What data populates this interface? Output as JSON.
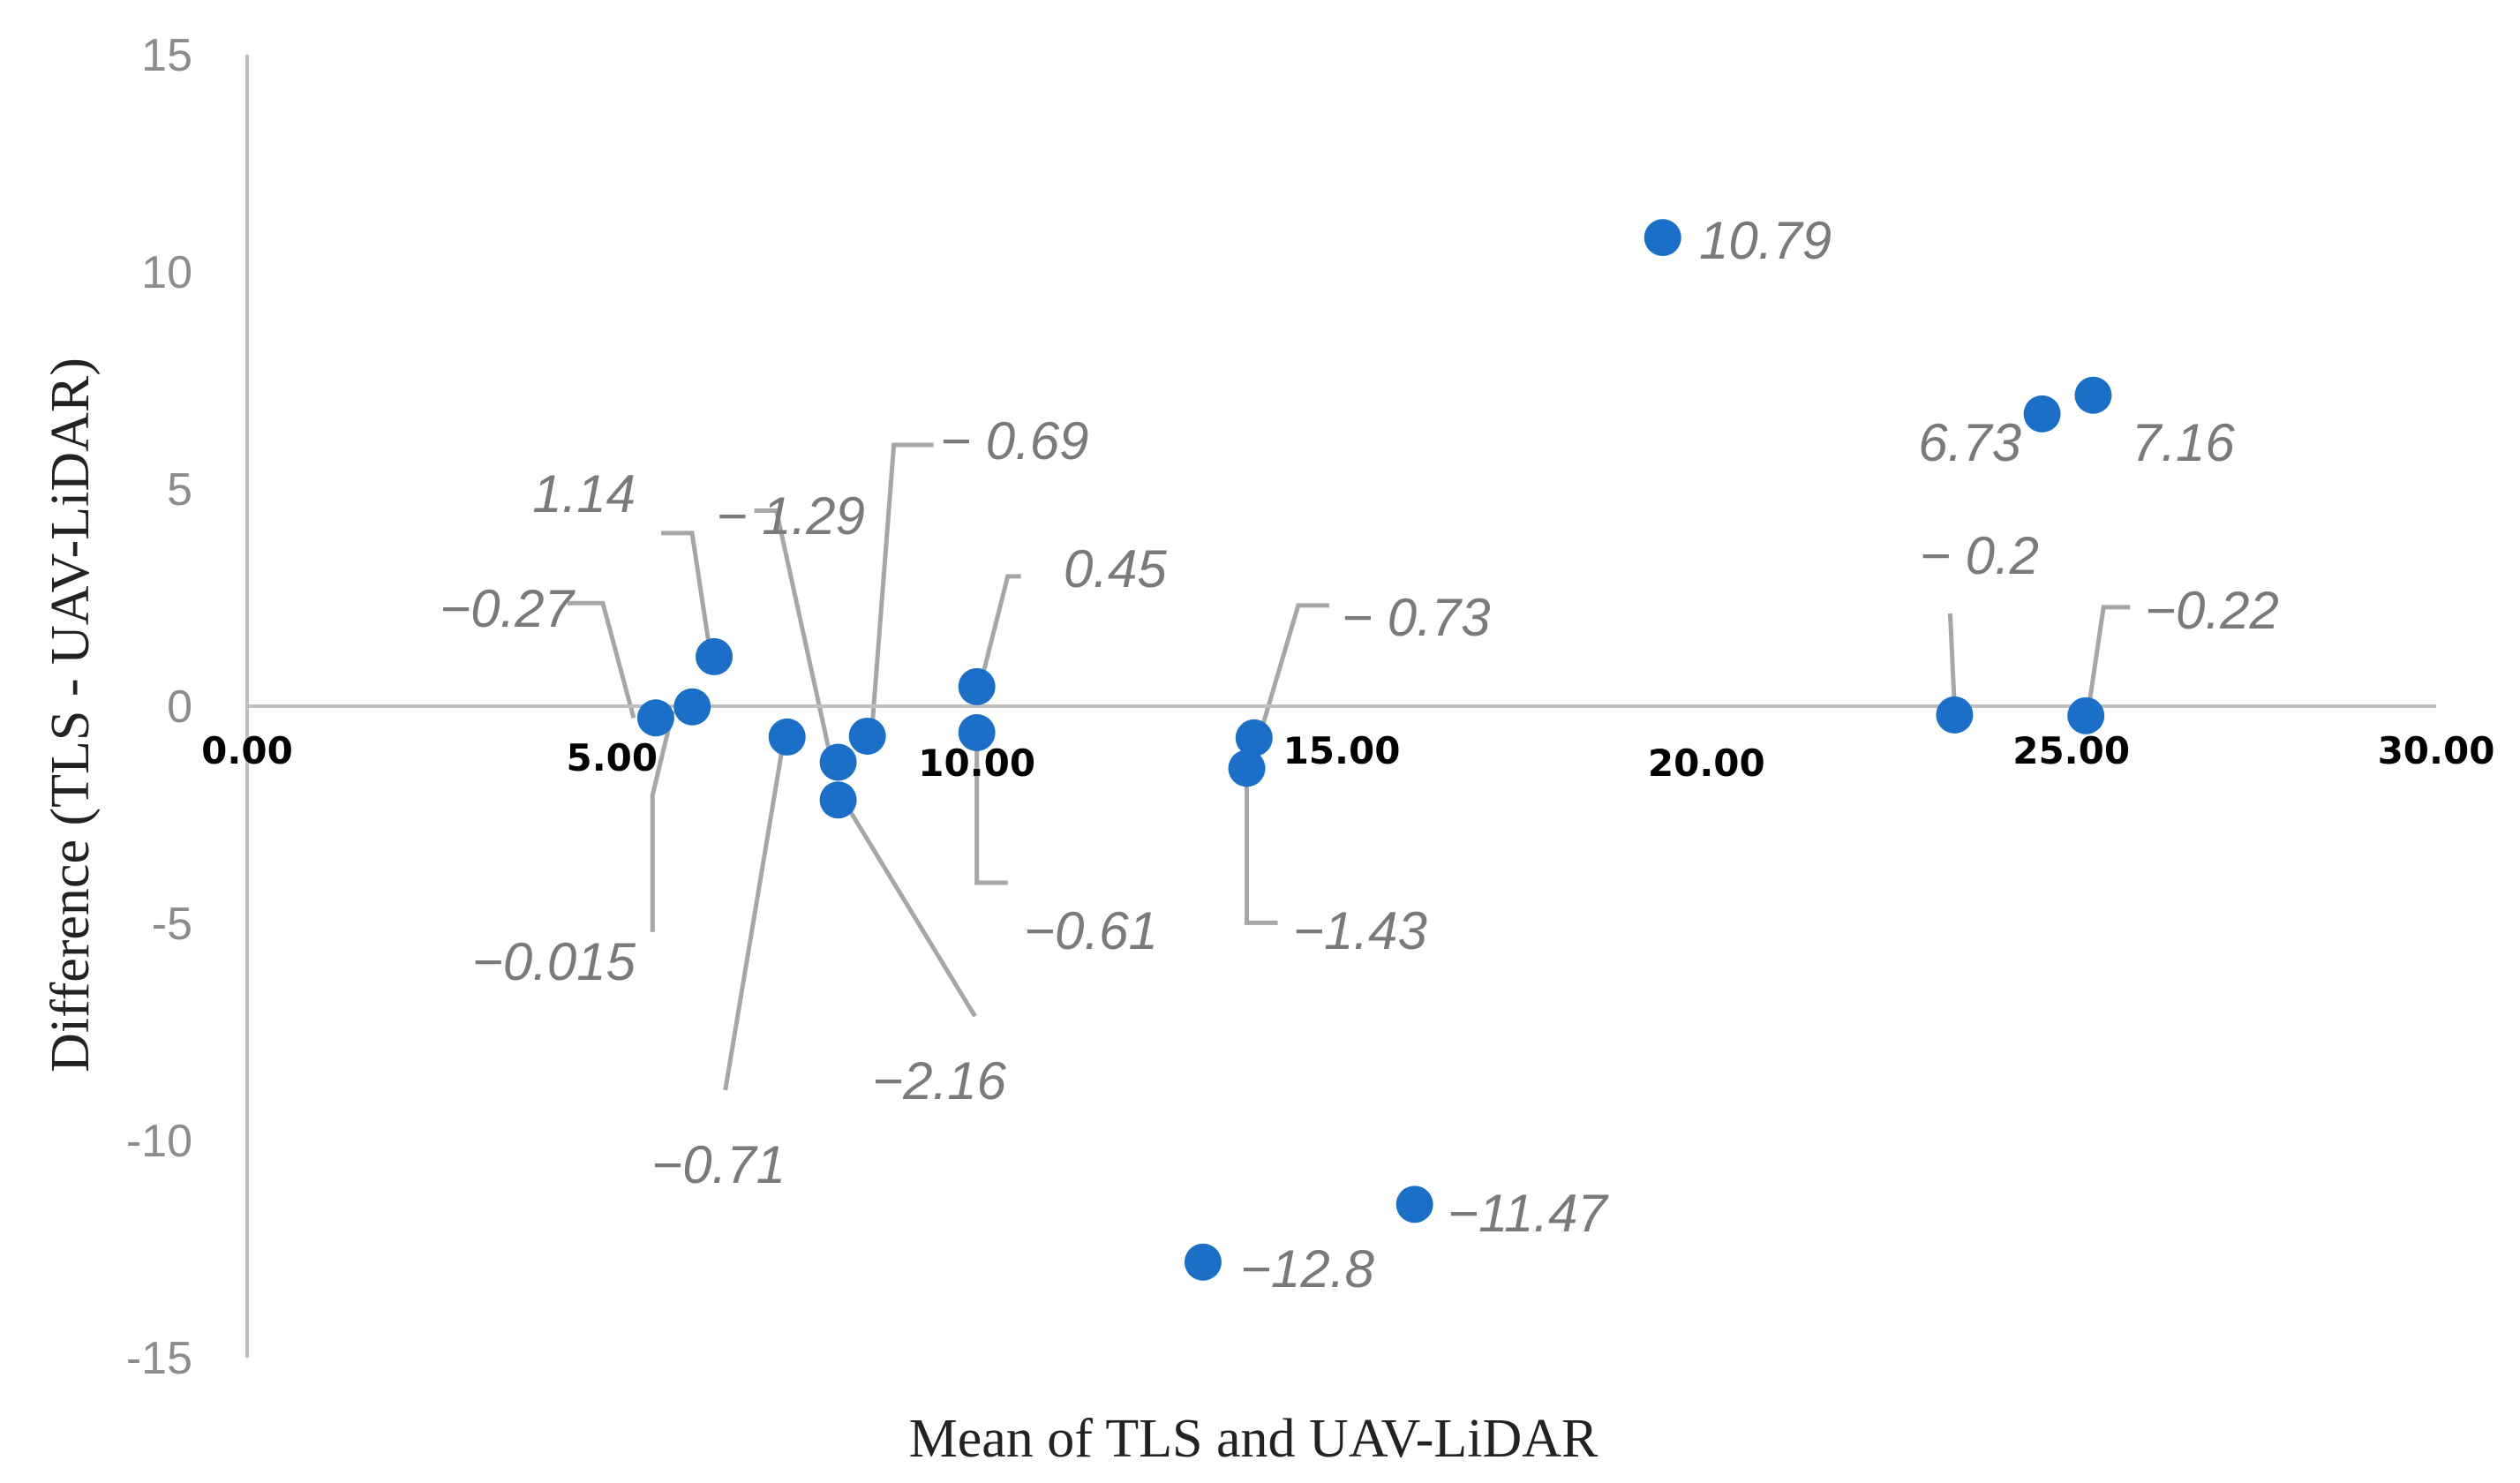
{
  "chart_data": {
    "type": "scatter",
    "title": "",
    "xlabel": "Mean of TLS and UAV-LiDAR",
    "ylabel": "Difference (TLS - UAV-LiDAR)",
    "xlim": [
      0,
      30
    ],
    "ylim": [
      -15,
      15
    ],
    "x_ticks": [
      "0.00",
      "5.00",
      "10.00",
      "15.00",
      "20.00",
      "25.00",
      "30.00"
    ],
    "y_ticks": [
      "15",
      "10",
      "5",
      "0",
      "-5",
      "-10",
      "-15"
    ],
    "grid": false,
    "marker_color": "#1b6fc6",
    "points": [
      {
        "x": 5.6,
        "y": -0.27,
        "label": "−0.27"
      },
      {
        "x": 6.1,
        "y": -0.015,
        "label": "−0.015"
      },
      {
        "x": 6.4,
        "y": 1.14,
        "label": "1.14"
      },
      {
        "x": 7.4,
        "y": -0.71,
        "label": "−0.71"
      },
      {
        "x": 8.1,
        "y": -1.29,
        "label": "− 1.29"
      },
      {
        "x": 8.1,
        "y": -2.16,
        "label": "−2.16"
      },
      {
        "x": 8.5,
        "y": -0.69,
        "label": "− 0.69"
      },
      {
        "x": 10.0,
        "y": 0.45,
        "label": "0.45"
      },
      {
        "x": 10.0,
        "y": -0.61,
        "label": "−0.61"
      },
      {
        "x": 13.8,
        "y": -0.73,
        "label": "− 0.73"
      },
      {
        "x": 13.7,
        "y": -1.43,
        "label": "−1.43"
      },
      {
        "x": 13.1,
        "y": -12.8,
        "label": "−12.8"
      },
      {
        "x": 16.0,
        "y": -11.47,
        "label": "−11.47"
      },
      {
        "x": 19.4,
        "y": 10.79,
        "label": "10.79"
      },
      {
        "x": 23.4,
        "y": -0.2,
        "label": "− 0.2"
      },
      {
        "x": 24.6,
        "y": 6.73,
        "label": "6.73"
      },
      {
        "x": 25.3,
        "y": 7.16,
        "label": "7.16"
      },
      {
        "x": 25.2,
        "y": -0.22,
        "label": "−0.22"
      }
    ]
  }
}
